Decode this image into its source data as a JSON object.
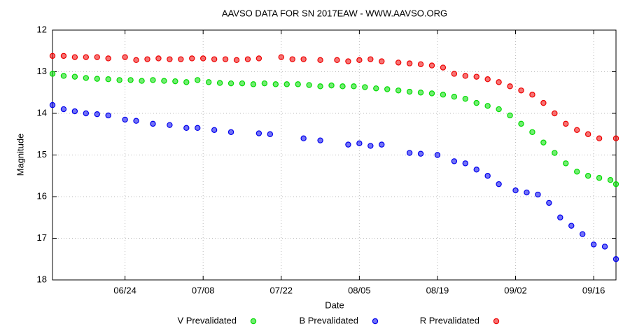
{
  "chart_data": {
    "type": "scatter",
    "title": "AAVSO DATA FOR SN 2017EAW - WWW.AAVSO.ORG",
    "x_label": "Date",
    "y_label": "Magnitude",
    "xlim": [
      "06/11",
      "09/20"
    ],
    "xticks": [
      "06/24",
      "07/08",
      "07/22",
      "08/05",
      "08/19",
      "09/02",
      "09/16"
    ],
    "ylim": [
      12,
      18
    ],
    "yticks": [
      12,
      13,
      14,
      15,
      16,
      17,
      18
    ],
    "y_inverted": true,
    "grid": true,
    "legend": "bottom",
    "series": [
      {
        "name": "V Prevalidated",
        "color": "#00dd00",
        "x": [
          "06/11",
          "06/13",
          "06/15",
          "06/17",
          "06/19",
          "06/21",
          "06/23",
          "06/25",
          "06/27",
          "06/29",
          "07/01",
          "07/03",
          "07/05",
          "07/07",
          "07/09",
          "07/11",
          "07/13",
          "07/15",
          "07/17",
          "07/19",
          "07/21",
          "07/23",
          "07/25",
          "07/27",
          "07/29",
          "07/31",
          "08/02",
          "08/04",
          "08/06",
          "08/08",
          "08/10",
          "08/12",
          "08/14",
          "08/16",
          "08/18",
          "08/20",
          "08/22",
          "08/24",
          "08/26",
          "08/28",
          "08/30",
          "09/01",
          "09/03",
          "09/05",
          "09/07",
          "09/09",
          "09/11",
          "09/13",
          "09/15",
          "09/17",
          "09/19",
          "09/20"
        ],
        "values": [
          13.05,
          13.1,
          13.12,
          13.15,
          13.17,
          13.18,
          13.2,
          13.2,
          13.22,
          13.2,
          13.22,
          13.23,
          13.25,
          13.2,
          13.25,
          13.27,
          13.28,
          13.28,
          13.3,
          13.28,
          13.3,
          13.3,
          13.3,
          13.32,
          13.35,
          13.33,
          13.35,
          13.35,
          13.37,
          13.4,
          13.42,
          13.45,
          13.48,
          13.5,
          13.52,
          13.55,
          13.6,
          13.65,
          13.75,
          13.82,
          13.9,
          14.05,
          14.25,
          14.45,
          14.7,
          14.95,
          15.2,
          15.4,
          15.5,
          15.55,
          15.6,
          15.7
        ]
      },
      {
        "name": "B Prevalidated",
        "color": "#0000ee",
        "x": [
          "06/11",
          "06/13",
          "06/15",
          "06/17",
          "06/19",
          "06/21",
          "06/24",
          "06/26",
          "06/29",
          "07/02",
          "07/05",
          "07/07",
          "07/10",
          "07/13",
          "07/18",
          "07/20",
          "07/26",
          "07/29",
          "08/03",
          "08/05",
          "08/07",
          "08/09",
          "08/14",
          "08/16",
          "08/19",
          "08/22",
          "08/24",
          "08/26",
          "08/28",
          "08/30",
          "09/02",
          "09/04",
          "09/06",
          "09/08",
          "09/10",
          "09/12",
          "09/14",
          "09/16",
          "09/18",
          "09/20"
        ],
        "values": [
          13.8,
          13.9,
          13.95,
          14.0,
          14.02,
          14.05,
          14.15,
          14.18,
          14.25,
          14.28,
          14.35,
          14.35,
          14.4,
          14.45,
          14.48,
          14.5,
          14.6,
          14.65,
          14.75,
          14.72,
          14.78,
          14.75,
          14.95,
          14.97,
          15.0,
          15.15,
          15.2,
          15.35,
          15.5,
          15.7,
          15.85,
          15.9,
          15.95,
          16.15,
          16.5,
          16.7,
          16.9,
          17.15,
          17.2,
          17.5
        ]
      },
      {
        "name": "R Prevalidated",
        "color": "#ee0000",
        "x": [
          "06/11",
          "06/13",
          "06/15",
          "06/17",
          "06/19",
          "06/21",
          "06/24",
          "06/26",
          "06/28",
          "06/30",
          "07/02",
          "07/04",
          "07/06",
          "07/08",
          "07/10",
          "07/12",
          "07/14",
          "07/16",
          "07/18",
          "07/22",
          "07/24",
          "07/26",
          "07/29",
          "08/01",
          "08/03",
          "08/05",
          "08/07",
          "08/09",
          "08/12",
          "08/14",
          "08/16",
          "08/18",
          "08/20",
          "08/22",
          "08/24",
          "08/26",
          "08/28",
          "08/30",
          "09/01",
          "09/03",
          "09/05",
          "09/07",
          "09/09",
          "09/11",
          "09/13",
          "09/15",
          "09/17",
          "09/20"
        ],
        "values": [
          12.62,
          12.62,
          12.65,
          12.65,
          12.65,
          12.68,
          12.65,
          12.72,
          12.7,
          12.68,
          12.7,
          12.7,
          12.68,
          12.68,
          12.7,
          12.7,
          12.72,
          12.7,
          12.68,
          12.65,
          12.7,
          12.7,
          12.72,
          12.72,
          12.75,
          12.72,
          12.7,
          12.75,
          12.78,
          12.8,
          12.82,
          12.85,
          12.9,
          13.05,
          13.1,
          13.12,
          13.18,
          13.25,
          13.35,
          13.45,
          13.55,
          13.75,
          14.0,
          14.25,
          14.4,
          14.5,
          14.6,
          14.6
        ]
      }
    ]
  }
}
